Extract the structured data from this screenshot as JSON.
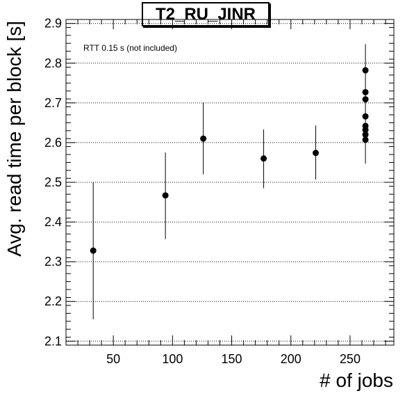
{
  "chart_data": {
    "type": "scatter",
    "title": "T2_RU_JINR",
    "xlabel": "# of jobs",
    "ylabel": "Avg. read time per block [s]",
    "annotation": "RTT 0.15 s (not included)",
    "xlim": [
      10,
      287
    ],
    "ylim": [
      2.09,
      2.91
    ],
    "xticks": [
      50,
      100,
      150,
      200,
      250
    ],
    "yticks": [
      2.1,
      2.2,
      2.3,
      2.4,
      2.5,
      2.6,
      2.7,
      2.8,
      2.9
    ],
    "grid": "y-dotted",
    "points": [
      {
        "x": 33,
        "y": 2.328,
        "ylo": 2.155,
        "yhi": 2.5
      },
      {
        "x": 94,
        "y": 2.467,
        "ylo": 2.357,
        "yhi": 2.575
      },
      {
        "x": 126,
        "y": 2.61,
        "ylo": 2.52,
        "yhi": 2.7
      },
      {
        "x": 177,
        "y": 2.56,
        "ylo": 2.485,
        "yhi": 2.633
      },
      {
        "x": 221,
        "y": 2.574,
        "ylo": 2.507,
        "yhi": 2.643
      },
      {
        "x": 263,
        "y": 2.782,
        "ylo": 2.547,
        "yhi": 2.848
      },
      {
        "x": 263,
        "y": 2.727
      },
      {
        "x": 263,
        "y": 2.709
      },
      {
        "x": 263,
        "y": 2.666
      },
      {
        "x": 263,
        "y": 2.642
      },
      {
        "x": 263,
        "y": 2.632
      },
      {
        "x": 263,
        "y": 2.62
      },
      {
        "x": 263,
        "y": 2.607
      }
    ]
  }
}
